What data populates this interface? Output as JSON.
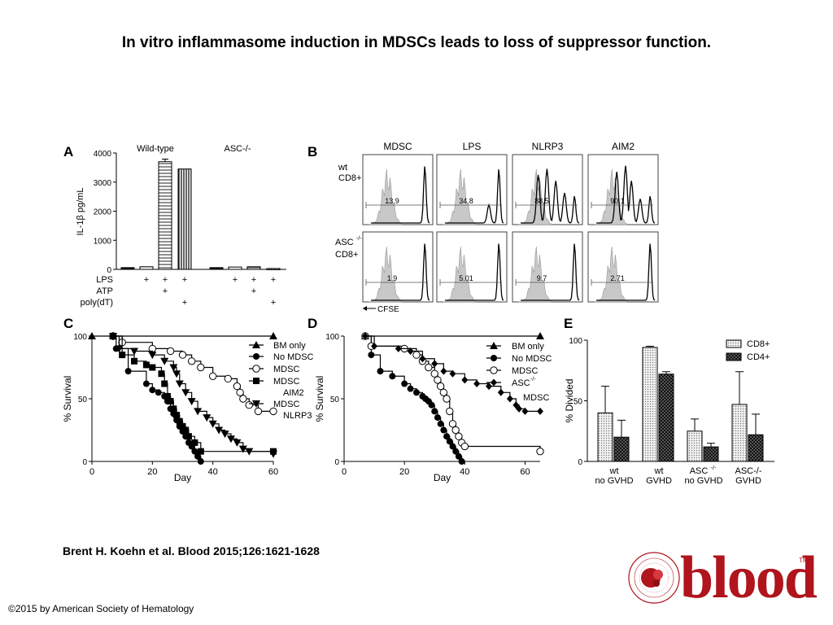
{
  "title": "In vitro inflammasome induction in MDSCs leads to loss of suppressor function.",
  "citation": "Brent H. Koehn et al. Blood 2015;126:1621-1628",
  "copyright": "©2015 by American Society of Hematology",
  "logo": {
    "word": "blood",
    "tm": "TM",
    "ring_text": "AMERICAN SOCIETY OF HEMATOLOGY",
    "color": "#b0141c"
  },
  "chart_data": [
    {
      "panel": "A",
      "type": "bar",
      "group_labels": [
        "Wild-type",
        "ASC-/-"
      ],
      "ylabel": "IL-1β pg/mL",
      "ylim": [
        0,
        4000
      ],
      "yticks": [
        0,
        1000,
        2000,
        3000,
        4000
      ],
      "values": [
        60,
        90,
        3700,
        3450,
        60,
        80,
        90,
        30
      ],
      "errors": [
        0,
        0,
        90,
        0,
        0,
        0,
        0,
        0
      ],
      "patterns": [
        "solid",
        "stripe",
        "hstripe",
        "vstripe",
        "solid",
        "stripe",
        "hstripe",
        "vstripe"
      ],
      "treatment_rows": [
        {
          "label": "LPS",
          "marks": [
            "",
            "+",
            "+",
            "+",
            "",
            "+",
            "+",
            "+"
          ]
        },
        {
          "label": "ATP",
          "marks": [
            "",
            "",
            "+",
            "",
            "",
            "",
            "+",
            ""
          ]
        },
        {
          "label": "poly(dT)",
          "marks": [
            "",
            "",
            "",
            "+",
            "",
            "",
            "",
            "+"
          ]
        }
      ]
    },
    {
      "panel": "B",
      "type": "histogram",
      "columns": [
        "MDSC",
        "LPS",
        "NLRP3",
        "AIM2"
      ],
      "rows": [
        "wt CD8+",
        "ASC-/- CD8+"
      ],
      "row_labels": [
        [
          "wt",
          "CD8+"
        ],
        [
          "ASC",
          "-/-",
          "CD8+"
        ]
      ],
      "values": [
        [
          "13.9",
          "34.8",
          "88.5",
          "90.1"
        ],
        [
          "1.9",
          "5.01",
          "9.7",
          "2.71"
        ]
      ],
      "xlabel": "CFSE"
    },
    {
      "panel": "C",
      "type": "line",
      "xlabel": "Day",
      "ylabel": "% Survival",
      "xlim": [
        0,
        60
      ],
      "ylim": [
        0,
        100
      ],
      "xticks": [
        0,
        20,
        40,
        60
      ],
      "yticks": [
        0,
        50,
        100
      ],
      "series": [
        {
          "name": "BM only",
          "marker": "triangle",
          "x": [
            0,
            7,
            60
          ],
          "y": [
            100,
            100,
            100
          ]
        },
        {
          "name": "No MDSC",
          "marker": "circle",
          "x": [
            7,
            8,
            12,
            18,
            20,
            22,
            24,
            25,
            26,
            27,
            28,
            29,
            30,
            31,
            32,
            33,
            34,
            35,
            36
          ],
          "y": [
            100,
            90,
            72,
            62,
            57,
            55,
            52,
            48,
            42,
            38,
            33,
            28,
            24,
            20,
            15,
            12,
            8,
            4,
            0
          ]
        },
        {
          "name": "MDSC",
          "marker": "open-circle",
          "x": [
            7,
            10,
            20,
            26,
            30,
            33,
            36,
            40,
            45,
            48,
            49,
            50,
            52,
            55,
            60
          ],
          "y": [
            100,
            95,
            90,
            88,
            85,
            80,
            75,
            68,
            66,
            60,
            55,
            50,
            45,
            40,
            40
          ]
        },
        {
          "name": "MDSC AIM2",
          "marker": "square",
          "x": [
            7,
            10,
            14,
            18,
            20,
            23,
            24,
            25,
            26,
            27,
            28,
            29,
            30,
            31,
            32,
            34,
            36,
            60
          ],
          "y": [
            100,
            85,
            80,
            77,
            75,
            70,
            62,
            52,
            48,
            42,
            37,
            32,
            28,
            25,
            20,
            15,
            8,
            8
          ]
        },
        {
          "name": "MDSC NLRP3",
          "marker": "down-triangle",
          "x": [
            7,
            9,
            14,
            20,
            24,
            27,
            28,
            29,
            31,
            33,
            35,
            38,
            40,
            42,
            44,
            46,
            48,
            50,
            52,
            60
          ],
          "y": [
            100,
            90,
            88,
            85,
            80,
            75,
            70,
            62,
            55,
            48,
            40,
            35,
            30,
            25,
            22,
            18,
            15,
            10,
            8,
            6
          ]
        }
      ],
      "legend": [
        "BM only",
        "No MDSC",
        "MDSC",
        "MDSC",
        "AIM2",
        "MDSC",
        "NLRP3"
      ]
    },
    {
      "panel": "D",
      "type": "line",
      "xlabel": "Day",
      "ylabel": "% Survival",
      "xlim": [
        0,
        60
      ],
      "ylim": [
        0,
        100
      ],
      "xticks": [
        0,
        20,
        40,
        60
      ],
      "yticks": [
        0,
        50,
        100
      ],
      "series": [
        {
          "name": "BM only",
          "marker": "triangle",
          "x": [
            7,
            65
          ],
          "y": [
            100,
            100
          ]
        },
        {
          "name": "No MDSC",
          "marker": "circle",
          "x": [
            7,
            9,
            12,
            16,
            20,
            22,
            24,
            26,
            27,
            28,
            29,
            30,
            31,
            32,
            33,
            34,
            35,
            36,
            37,
            38,
            39
          ],
          "y": [
            100,
            85,
            72,
            68,
            62,
            58,
            55,
            52,
            50,
            48,
            45,
            40,
            35,
            30,
            25,
            20,
            16,
            12,
            8,
            4,
            0
          ]
        },
        {
          "name": "MDSC",
          "marker": "open-circle",
          "x": [
            7,
            9,
            20,
            24,
            26,
            28,
            30,
            31,
            32,
            33,
            34,
            35,
            36,
            37,
            38,
            39,
            40,
            65
          ],
          "y": [
            100,
            92,
            90,
            85,
            80,
            75,
            70,
            65,
            60,
            55,
            50,
            40,
            30,
            25,
            20,
            15,
            12,
            8
          ]
        },
        {
          "name": "ASC-/- MDSC",
          "marker": "diamond",
          "x": [
            7,
            10,
            18,
            22,
            26,
            30,
            33,
            36,
            40,
            44,
            48,
            52,
            55,
            57,
            58,
            60,
            65
          ],
          "y": [
            100,
            92,
            90,
            88,
            82,
            78,
            72,
            70,
            65,
            62,
            60,
            55,
            50,
            45,
            42,
            40,
            40
          ]
        }
      ],
      "legend": [
        "BM only",
        "No MDSC",
        "MDSC",
        "ASC",
        "-/-",
        "MDSC"
      ]
    },
    {
      "panel": "E",
      "type": "bar",
      "ylabel": "% Divided",
      "ylim": [
        0,
        100
      ],
      "yticks": [
        0,
        50,
        100
      ],
      "categories": [
        [
          "wt",
          "no GVHD"
        ],
        [
          "wt",
          "GVHD"
        ],
        [
          "ASC",
          "-/-",
          "no GVHD"
        ],
        [
          "ASC-/-",
          "GVHD"
        ]
      ],
      "series": [
        {
          "name": "CD8+",
          "values": [
            40,
            94,
            25,
            47
          ],
          "errors": [
            22,
            1,
            10,
            27
          ]
        },
        {
          "name": "CD4+",
          "values": [
            20,
            72,
            12,
            22
          ],
          "errors": [
            14,
            2,
            3,
            17
          ]
        }
      ]
    }
  ]
}
